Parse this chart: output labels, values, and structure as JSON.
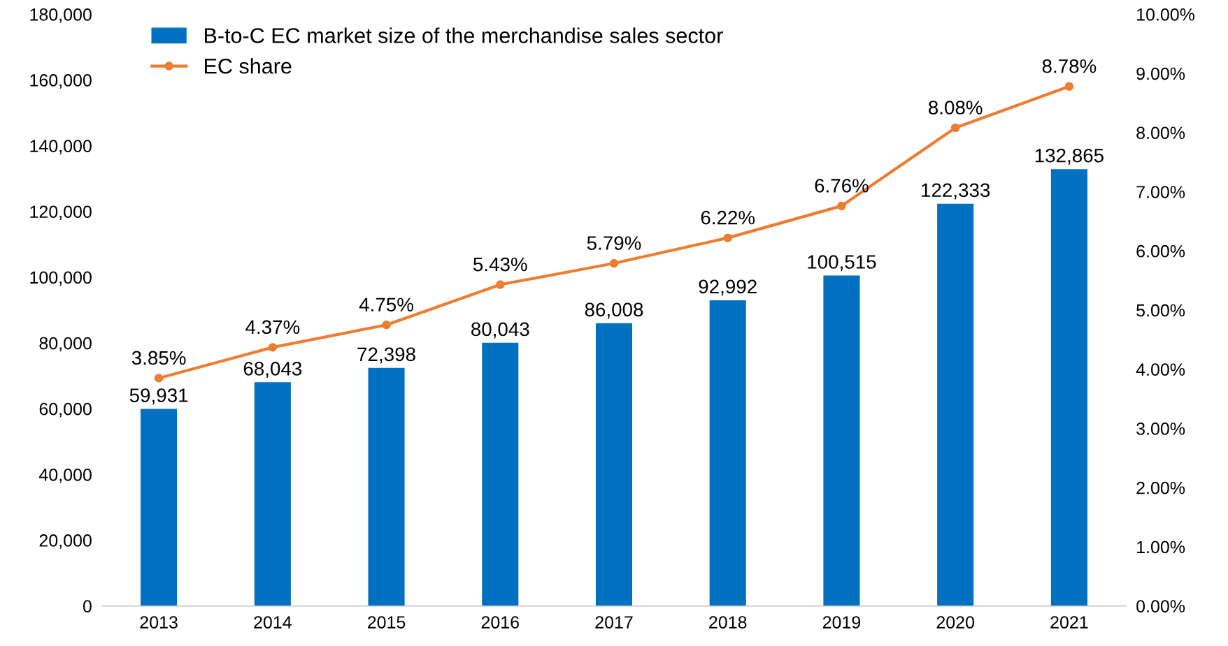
{
  "chart_data": {
    "type": "bar",
    "categories": [
      "2013",
      "2014",
      "2015",
      "2016",
      "2017",
      "2018",
      "2019",
      "2020",
      "2021"
    ],
    "series": [
      {
        "name": "B-to-C EC market size of the merchandise sales sector",
        "color": "#0070c0",
        "values": [
          59931,
          68043,
          72398,
          80043,
          86008,
          92992,
          100515,
          122333,
          132865
        ],
        "value_labels": [
          "59,931",
          "68,043",
          "72,398",
          "80,043",
          "86,008",
          "92,992",
          "100,515",
          "122,333",
          "132,865"
        ]
      },
      {
        "name": "EC share",
        "type": "line",
        "axis": "y2",
        "color": "#ed7d31",
        "values": [
          3.85,
          4.37,
          4.75,
          5.43,
          5.79,
          6.22,
          6.76,
          8.08,
          8.78
        ],
        "value_labels": [
          "3.85%",
          "4.37%",
          "4.75%",
          "5.43%",
          "5.79%",
          "6.22%",
          "6.76%",
          "8.08%",
          "8.78%"
        ]
      }
    ],
    "ylim": [
      0,
      180000
    ],
    "yticks": [
      {
        "value": 0,
        "label": "0"
      },
      {
        "value": 20000,
        "label": "20,000"
      },
      {
        "value": 40000,
        "label": "40,000"
      },
      {
        "value": 60000,
        "label": "60,000"
      },
      {
        "value": 80000,
        "label": "80,000"
      },
      {
        "value": 100000,
        "label": "100,000"
      },
      {
        "value": 120000,
        "label": "120,000"
      },
      {
        "value": 140000,
        "label": "140,000"
      },
      {
        "value": 160000,
        "label": "160,000"
      },
      {
        "value": 180000,
        "label": "180,000"
      }
    ],
    "y2lim": [
      0,
      10
    ],
    "y2ticks": [
      {
        "value": 0,
        "label": "0.00%"
      },
      {
        "value": 1,
        "label": "1.00%"
      },
      {
        "value": 2,
        "label": "2.00%"
      },
      {
        "value": 3,
        "label": "3.00%"
      },
      {
        "value": 4,
        "label": "4.00%"
      },
      {
        "value": 5,
        "label": "5.00%"
      },
      {
        "value": 6,
        "label": "6.00%"
      },
      {
        "value": 7,
        "label": "7.00%"
      },
      {
        "value": 8,
        "label": "8.00%"
      },
      {
        "value": 9,
        "label": "9.00%"
      },
      {
        "value": 10,
        "label": "10.00%"
      }
    ],
    "grid": false,
    "legend": "top left",
    "marker": "circle",
    "line_style": "solid"
  }
}
